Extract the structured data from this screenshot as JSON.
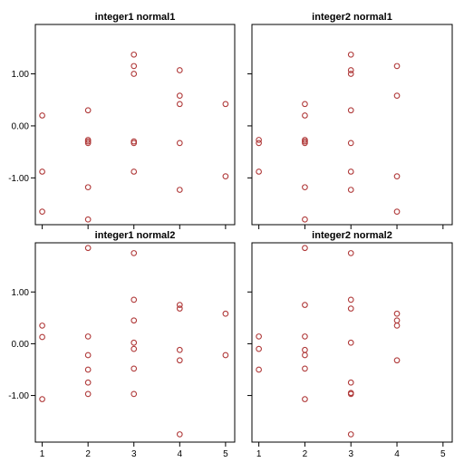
{
  "chart_data": [
    {
      "type": "scatter",
      "title": "integer1 normal1",
      "xlim": [
        0.85,
        5.2
      ],
      "ylim": [
        -1.9,
        1.95
      ],
      "xticks": [
        "1",
        "2",
        "3",
        "4",
        "5"
      ],
      "yticks": [
        "1.00",
        "0.00",
        "-1.00"
      ],
      "show_x_tick_labels": false,
      "show_y_tick_labels": true,
      "point_color": "#b03a3a",
      "points": [
        [
          1,
          0.2
        ],
        [
          1,
          -0.88
        ],
        [
          1,
          -1.65
        ],
        [
          2,
          0.3
        ],
        [
          2,
          -0.27
        ],
        [
          2,
          -0.3
        ],
        [
          2,
          -0.33
        ],
        [
          2,
          -1.18
        ],
        [
          2,
          -1.8
        ],
        [
          3,
          1.37
        ],
        [
          3,
          1.15
        ],
        [
          3,
          1.0
        ],
        [
          3,
          -0.3
        ],
        [
          3,
          -0.33
        ],
        [
          3,
          -0.88
        ],
        [
          4,
          1.07
        ],
        [
          4,
          0.58
        ],
        [
          4,
          0.42
        ],
        [
          4,
          -0.33
        ],
        [
          4,
          -1.23
        ],
        [
          5,
          0.42
        ],
        [
          5,
          -0.97
        ]
      ]
    },
    {
      "type": "scatter",
      "title": "integer2 normal1",
      "xlim": [
        0.85,
        5.2
      ],
      "ylim": [
        -1.9,
        1.95
      ],
      "xticks": [
        "1",
        "2",
        "3",
        "4",
        "5"
      ],
      "yticks": [
        "1.00",
        "0.00",
        "-1.00"
      ],
      "show_x_tick_labels": false,
      "show_y_tick_labels": false,
      "point_color": "#b03a3a",
      "points": [
        [
          1,
          -0.27
        ],
        [
          1,
          -0.33
        ],
        [
          1,
          -0.88
        ],
        [
          2,
          0.42
        ],
        [
          2,
          0.2
        ],
        [
          2,
          -0.27
        ],
        [
          2,
          -0.3
        ],
        [
          2,
          -0.33
        ],
        [
          2,
          -1.18
        ],
        [
          2,
          -1.8
        ],
        [
          3,
          1.37
        ],
        [
          3,
          1.07
        ],
        [
          3,
          1.0
        ],
        [
          3,
          0.3
        ],
        [
          3,
          -0.33
        ],
        [
          3,
          -0.88
        ],
        [
          3,
          -1.23
        ],
        [
          4,
          1.15
        ],
        [
          4,
          0.58
        ],
        [
          4,
          -0.97
        ],
        [
          4,
          -1.65
        ]
      ]
    },
    {
      "type": "scatter",
      "title": "integer1 normal2",
      "xlim": [
        0.85,
        5.2
      ],
      "ylim": [
        -1.9,
        1.95
      ],
      "xticks": [
        "1",
        "2",
        "3",
        "4",
        "5"
      ],
      "yticks": [
        "1.00",
        "0.00",
        "-1.00"
      ],
      "show_x_tick_labels": true,
      "show_y_tick_labels": true,
      "point_color": "#b03a3a",
      "points": [
        [
          1,
          0.35
        ],
        [
          1,
          0.13
        ],
        [
          1,
          -1.07
        ],
        [
          2,
          1.85
        ],
        [
          2,
          0.14
        ],
        [
          2,
          -0.22
        ],
        [
          2,
          -0.5
        ],
        [
          2,
          -0.75
        ],
        [
          2,
          -0.97
        ],
        [
          3,
          1.75
        ],
        [
          3,
          0.85
        ],
        [
          3,
          0.45
        ],
        [
          3,
          0.02
        ],
        [
          3,
          -0.1
        ],
        [
          3,
          -0.48
        ],
        [
          3,
          -0.97
        ],
        [
          4,
          0.75
        ],
        [
          4,
          0.68
        ],
        [
          4,
          -0.12
        ],
        [
          4,
          -0.32
        ],
        [
          4,
          -1.75
        ],
        [
          5,
          0.58
        ],
        [
          5,
          -0.22
        ]
      ]
    },
    {
      "type": "scatter",
      "title": "integer2 normal2",
      "xlim": [
        0.85,
        5.2
      ],
      "ylim": [
        -1.9,
        1.95
      ],
      "xticks": [
        "1",
        "2",
        "3",
        "4",
        "5"
      ],
      "yticks": [
        "1.00",
        "0.00",
        "-1.00"
      ],
      "show_x_tick_labels": true,
      "show_y_tick_labels": false,
      "point_color": "#b03a3a",
      "points": [
        [
          1,
          0.14
        ],
        [
          1,
          -0.1
        ],
        [
          1,
          -0.5
        ],
        [
          2,
          1.85
        ],
        [
          2,
          0.75
        ],
        [
          2,
          0.14
        ],
        [
          2,
          -0.12
        ],
        [
          2,
          -0.22
        ],
        [
          2,
          -0.48
        ],
        [
          2,
          -1.07
        ],
        [
          3,
          1.75
        ],
        [
          3,
          0.85
        ],
        [
          3,
          0.68
        ],
        [
          3,
          0.02
        ],
        [
          3,
          -0.75
        ],
        [
          3,
          -0.95
        ],
        [
          3,
          -0.97
        ],
        [
          3,
          -1.75
        ],
        [
          4,
          0.58
        ],
        [
          4,
          0.45
        ],
        [
          4,
          0.35
        ],
        [
          4,
          -0.32
        ]
      ]
    }
  ]
}
